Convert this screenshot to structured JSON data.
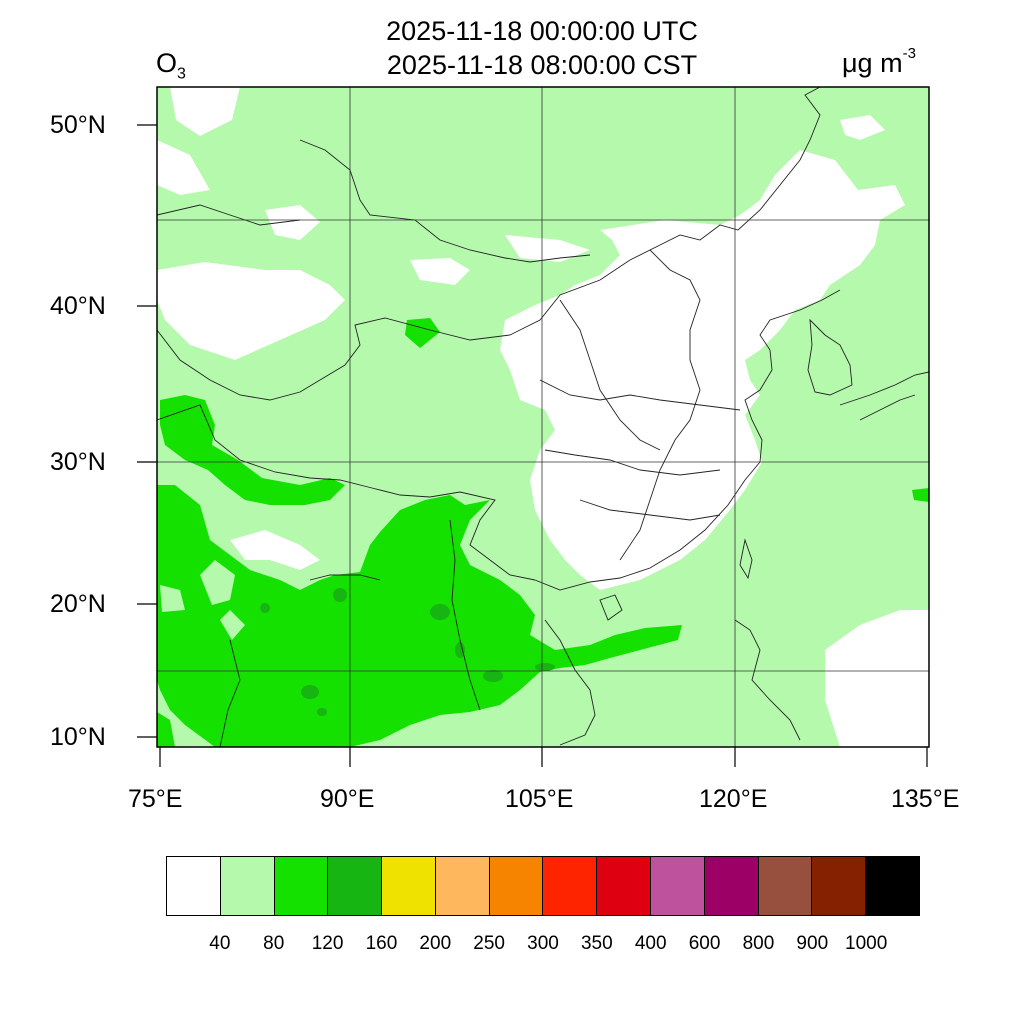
{
  "title": {
    "line1": "2025-11-18 00:00:00 UTC",
    "line2": "2025-11-18 08:00:00 CST"
  },
  "variable": {
    "base": "O",
    "sub": "3"
  },
  "units": {
    "base": "μg m",
    "sup": "-3"
  },
  "axes": {
    "lat_labels": [
      "50°N",
      "40°N",
      "30°N",
      "20°N",
      "10°N"
    ],
    "lon_labels": [
      "75°E",
      "90°E",
      "105°E",
      "120°E",
      "135°E"
    ]
  },
  "colorbar": {
    "colors": [
      "#ffffff",
      "#b5f9ad",
      "#14e100",
      "#16b512",
      "#f0e200",
      "#ffb75e",
      "#f78400",
      "#ff2400",
      "#de0011",
      "#be529d",
      "#9c0066",
      "#98503e",
      "#862100",
      "#000000"
    ],
    "labels": [
      "40",
      "80",
      "120",
      "160",
      "200",
      "250",
      "300",
      "350",
      "400",
      "600",
      "800",
      "900",
      "1000"
    ]
  },
  "colors": {
    "background_green": "#b5f9ad",
    "green": "#14e100",
    "dark_green": "#16b512",
    "white": "#ffffff"
  }
}
